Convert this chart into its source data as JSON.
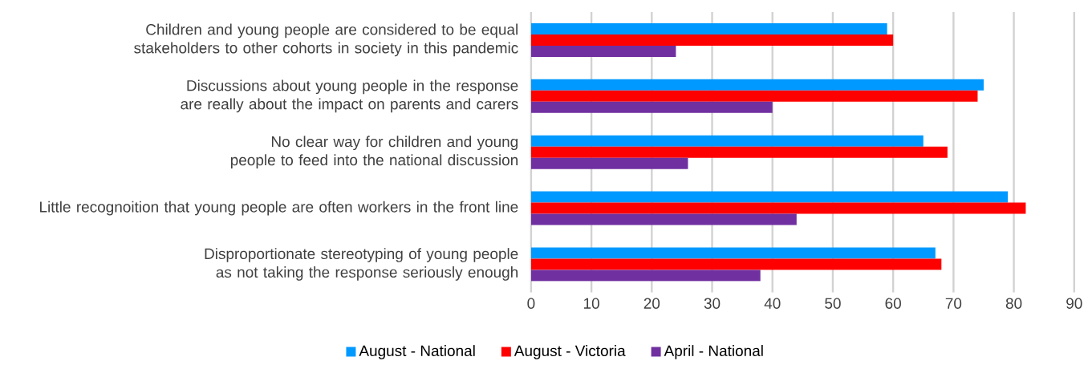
{
  "chart_data": {
    "type": "bar",
    "orientation": "horizontal",
    "categories": [
      "Children and young people are considered to be equal stakeholders to other cohorts in society in this pandemic",
      "Discussions about young people in the response are really about the impact on parents and carers",
      "No clear way for children and young people to feed into the national discussion",
      "Little recognoition that young people are often workers in the front line",
      "Disproportionate stereotyping of young people as not taking the response seriously enough"
    ],
    "series": [
      {
        "name": "August - National",
        "color": "#0099ff",
        "values": [
          59,
          75,
          65,
          79,
          67
        ]
      },
      {
        "name": "August - Victoria",
        "color": "#ff0000",
        "values": [
          60,
          74,
          69,
          82,
          68
        ]
      },
      {
        "name": "April - National",
        "color": "#7030a0",
        "values": [
          24,
          40,
          26,
          44,
          38
        ]
      }
    ],
    "xlim": [
      0,
      90
    ],
    "xticks": [
      0,
      10,
      20,
      30,
      40,
      50,
      60,
      70,
      80,
      90
    ],
    "grid": "x",
    "legend": "bottom"
  }
}
